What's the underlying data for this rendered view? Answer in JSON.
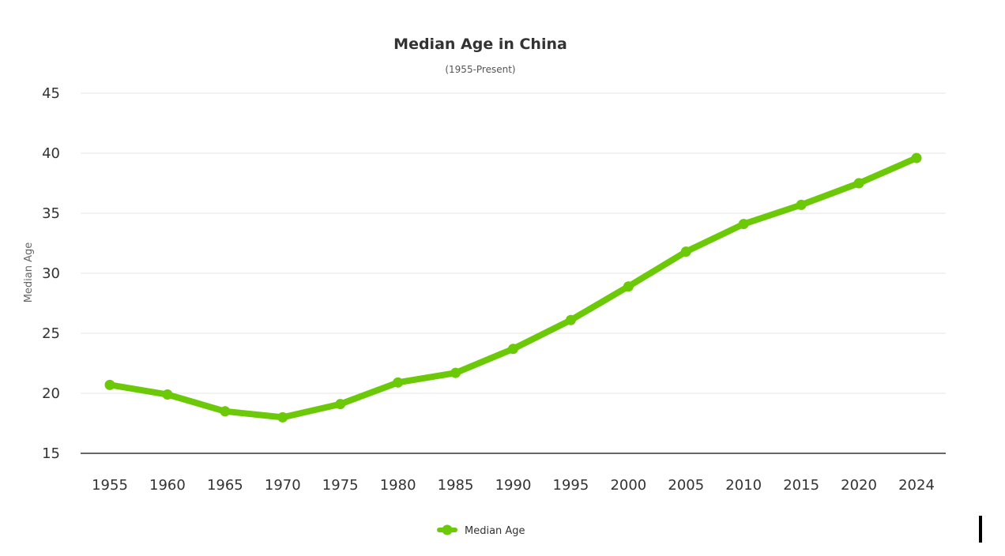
{
  "chart_data": {
    "type": "line",
    "title": "Median Age in China",
    "subtitle": "(1955-Present)",
    "ylabel": "Median Age",
    "xlabel": "",
    "categories": [
      "1955",
      "1960",
      "1965",
      "1970",
      "1975",
      "1980",
      "1985",
      "1990",
      "1995",
      "2000",
      "2005",
      "2010",
      "2015",
      "2020",
      "2024"
    ],
    "series": [
      {
        "name": "Median Age",
        "values": [
          20.7,
          19.9,
          18.5,
          18.0,
          19.1,
          20.9,
          21.7,
          23.7,
          26.1,
          28.9,
          31.8,
          34.1,
          35.7,
          37.5,
          39.6
        ]
      }
    ],
    "ylim": [
      15,
      45
    ],
    "yticks": [
      "15",
      "20",
      "25",
      "30",
      "35",
      "40",
      "45"
    ],
    "grid": true,
    "legend": "bottom-center",
    "colors": {
      "line": "#6cc907",
      "grid": "#e6e6e6",
      "axis": "#333333"
    }
  }
}
